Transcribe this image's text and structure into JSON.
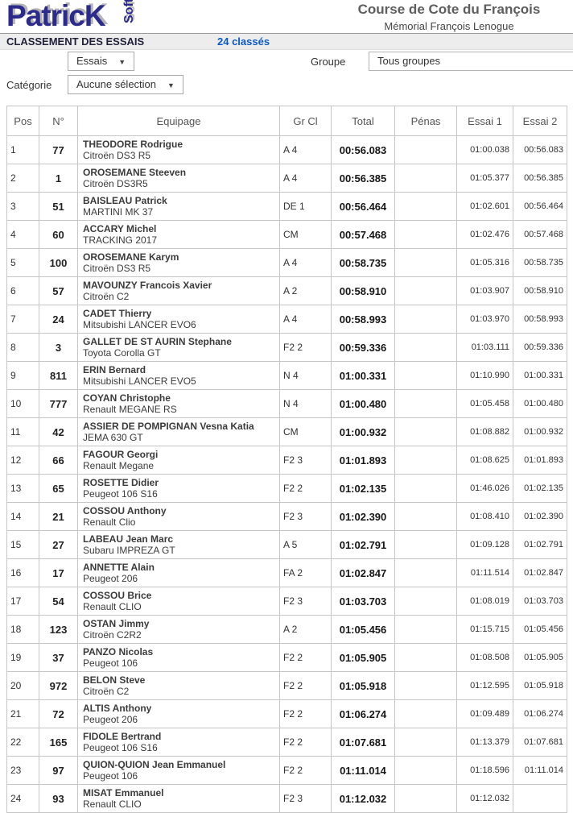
{
  "logo": {
    "main": "PatricK",
    "sub": "Soft"
  },
  "event": {
    "title": "Course de Cote du François",
    "subtitle": "Mémorial François Lenogue"
  },
  "header_bar": {
    "title": "CLASSEMENT DES ESSAIS",
    "count_link": "24 classés"
  },
  "filters": {
    "essais": {
      "value": "Essais"
    },
    "groupe": {
      "label": "Groupe",
      "value": "Tous groupes"
    },
    "categorie": {
      "label": "Catégorie",
      "value": "Aucune sélection"
    }
  },
  "colors": {
    "logo_blue": "#2b2b8e",
    "link_blue": "#0a58ca",
    "bar_background": "#ededed",
    "table_border": "#c6c6c6",
    "title_gray": "#5e5e5e"
  },
  "table": {
    "columns": [
      "Pos",
      "N°",
      "Equipage",
      "Gr Cl",
      "Total",
      "Pénas",
      "Essai 1",
      "Essai 2"
    ],
    "rows": [
      {
        "pos": "1",
        "num": "77",
        "driver": "THEODORE Rodrigue",
        "car": "Citroën DS3 R5",
        "grcl": "A 4",
        "total": "00:56.083",
        "penas": "",
        "essai1": "01:00.038",
        "essai2": "00:56.083"
      },
      {
        "pos": "2",
        "num": "1",
        "driver": "OROSEMANE Steeven",
        "car": "Citroën DS3R5",
        "grcl": "A 4",
        "total": "00:56.385",
        "penas": "",
        "essai1": "01:05.377",
        "essai2": "00:56.385"
      },
      {
        "pos": "3",
        "num": "51",
        "driver": "BAISLEAU Patrick",
        "car": "MARTINI MK 37",
        "grcl": "DE 1",
        "total": "00:56.464",
        "penas": "",
        "essai1": "01:02.601",
        "essai2": "00:56.464"
      },
      {
        "pos": "4",
        "num": "60",
        "driver": "ACCARY Michel",
        "car": "TRACKING 2017",
        "grcl": "CM",
        "total": "00:57.468",
        "penas": "",
        "essai1": "01:02.476",
        "essai2": "00:57.468"
      },
      {
        "pos": "5",
        "num": "100",
        "driver": "OROSEMANE Karym",
        "car": "Citroën DS3 R5",
        "grcl": "A 4",
        "total": "00:58.735",
        "penas": "",
        "essai1": "01:05.316",
        "essai2": "00:58.735"
      },
      {
        "pos": "6",
        "num": "57",
        "driver": "MAVOUNZY Francois Xavier",
        "car": "Citroën C2",
        "grcl": "A 2",
        "total": "00:58.910",
        "penas": "",
        "essai1": "01:03.907",
        "essai2": "00:58.910"
      },
      {
        "pos": "7",
        "num": "24",
        "driver": "CADET Thierry",
        "car": "Mitsubishi LANCER EVO6",
        "grcl": "A 4",
        "total": "00:58.993",
        "penas": "",
        "essai1": "01:03.970",
        "essai2": "00:58.993"
      },
      {
        "pos": "8",
        "num": "3",
        "driver": "GALLET DE ST AURIN Stephane",
        "car": "Toyota Corolla GT",
        "grcl": "F2 2",
        "total": "00:59.336",
        "penas": "",
        "essai1": "01:03.111",
        "essai2": "00:59.336"
      },
      {
        "pos": "9",
        "num": "811",
        "driver": "ERIN Bernard",
        "car": "Mitsubishi LANCER EVO5",
        "grcl": "N 4",
        "total": "01:00.331",
        "penas": "",
        "essai1": "01:10.990",
        "essai2": "01:00.331"
      },
      {
        "pos": "10",
        "num": "777",
        "driver": "COYAN Christophe",
        "car": "Renault MEGANE RS",
        "grcl": "N 4",
        "total": "01:00.480",
        "penas": "",
        "essai1": "01:05.458",
        "essai2": "01:00.480"
      },
      {
        "pos": "11",
        "num": "42",
        "driver": "ASSIER DE POMPIGNAN Vesna Katia",
        "car": "JEMA 630 GT",
        "grcl": "CM",
        "total": "01:00.932",
        "penas": "",
        "essai1": "01:08.882",
        "essai2": "01:00.932"
      },
      {
        "pos": "12",
        "num": "66",
        "driver": "FAGOUR Georgi",
        "car": "Renault Megane",
        "grcl": "F2 3",
        "total": "01:01.893",
        "penas": "",
        "essai1": "01:08.625",
        "essai2": "01:01.893"
      },
      {
        "pos": "13",
        "num": "65",
        "driver": "ROSETTE Didier",
        "car": "Peugeot 106 S16",
        "grcl": "F2 2",
        "total": "01:02.135",
        "penas": "",
        "essai1": "01:46.026",
        "essai2": "01:02.135"
      },
      {
        "pos": "14",
        "num": "21",
        "driver": "COSSOU Anthony",
        "car": "Renault Clio",
        "grcl": "F2 3",
        "total": "01:02.390",
        "penas": "",
        "essai1": "01:08.410",
        "essai2": "01:02.390"
      },
      {
        "pos": "15",
        "num": "27",
        "driver": "LABEAU Jean Marc",
        "car": "Subaru IMPREZA GT",
        "grcl": "A 5",
        "total": "01:02.791",
        "penas": "",
        "essai1": "01:09.128",
        "essai2": "01:02.791"
      },
      {
        "pos": "16",
        "num": "17",
        "driver": "ANNETTE Alain",
        "car": "Peugeot 206",
        "grcl": "FA 2",
        "total": "01:02.847",
        "penas": "",
        "essai1": "01:11.514",
        "essai2": "01:02.847"
      },
      {
        "pos": "17",
        "num": "54",
        "driver": "COSSOU Brice",
        "car": "Renault CLIO",
        "grcl": "F2 3",
        "total": "01:03.703",
        "penas": "",
        "essai1": "01:08.019",
        "essai2": "01:03.703"
      },
      {
        "pos": "18",
        "num": "123",
        "driver": "OSTAN Jimmy",
        "car": "Citroën C2R2",
        "grcl": "A 2",
        "total": "01:05.456",
        "penas": "",
        "essai1": "01:15.715",
        "essai2": "01:05.456"
      },
      {
        "pos": "19",
        "num": "37",
        "driver": "PANZO Nicolas",
        "car": "Peugeot 106",
        "grcl": "F2 2",
        "total": "01:05.905",
        "penas": "",
        "essai1": "01:08.508",
        "essai2": "01:05.905"
      },
      {
        "pos": "20",
        "num": "972",
        "driver": "BELON Steve",
        "car": "Citroën C2",
        "grcl": "F2 2",
        "total": "01:05.918",
        "penas": "",
        "essai1": "01:12.595",
        "essai2": "01:05.918"
      },
      {
        "pos": "21",
        "num": "72",
        "driver": "ALTIS Anthony",
        "car": "Peugeot 206",
        "grcl": "F2 2",
        "total": "01:06.274",
        "penas": "",
        "essai1": "01:09.489",
        "essai2": "01:06.274"
      },
      {
        "pos": "22",
        "num": "165",
        "driver": "FIDOLE Bertrand",
        "car": "Peugeot 106 S16",
        "grcl": "F2 2",
        "total": "01:07.681",
        "penas": "",
        "essai1": "01:13.379",
        "essai2": "01:07.681"
      },
      {
        "pos": "23",
        "num": "97",
        "driver": "QUION-QUION Jean Emmanuel",
        "car": "Peugeot 106",
        "grcl": "F2 2",
        "total": "01:11.014",
        "penas": "",
        "essai1": "01:18.596",
        "essai2": "01:11.014"
      },
      {
        "pos": "24",
        "num": "93",
        "driver": "MISAT Emmanuel",
        "car": "Renault CLIO",
        "grcl": "F2 3",
        "total": "01:12.032",
        "penas": "",
        "essai1": "01:12.032",
        "essai2": ""
      }
    ]
  }
}
